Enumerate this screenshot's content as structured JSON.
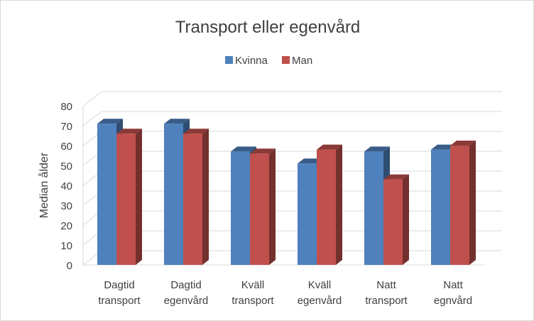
{
  "chart_data": {
    "type": "bar",
    "title": "Transport eller egenvård",
    "ylabel": "Median ålder",
    "xlabel": "",
    "ylim": [
      0,
      80
    ],
    "yticks": [
      0,
      10,
      20,
      30,
      40,
      50,
      60,
      70,
      80
    ],
    "grid": true,
    "legend_position": "top",
    "style": "3d-clustered-column",
    "categories": [
      [
        "Dagtid",
        "transport"
      ],
      [
        "Dagtid",
        "egenvård"
      ],
      [
        "Kväll",
        "transport"
      ],
      [
        "Kväll",
        "egenvård"
      ],
      [
        "Natt",
        "transport"
      ],
      [
        "Natt",
        "egnvård"
      ]
    ],
    "series": [
      {
        "name": "Kvinna",
        "color": "#4f81bd",
        "values": [
          71,
          71,
          57,
          51,
          57,
          58
        ]
      },
      {
        "name": "Man",
        "color": "#c0504d",
        "values": [
          66,
          66,
          56,
          58,
          43,
          60
        ]
      }
    ]
  }
}
